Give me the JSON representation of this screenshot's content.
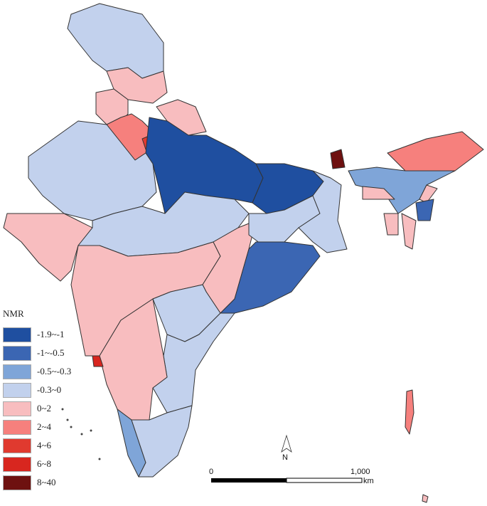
{
  "legend": {
    "title": "NMR",
    "items": [
      {
        "label": "-1.9~-1",
        "color": "#1f4fa0"
      },
      {
        "label": "-1~-0.5",
        "color": "#3b66b3"
      },
      {
        "label": "-0.5~-0.3",
        "color": "#7fa5d8"
      },
      {
        "label": "-0.3~0",
        "color": "#c2d1ed"
      },
      {
        "label": "0~2",
        "color": "#f8bdbf"
      },
      {
        "label": "2~4",
        "color": "#f6807d"
      },
      {
        "label": "4~6",
        "color": "#e03a2f"
      },
      {
        "label": "6~8",
        "color": "#d8261f"
      },
      {
        "label": "8~40",
        "color": "#6e1110"
      }
    ]
  },
  "north_arrow": {
    "label": "N"
  },
  "scale_bar": {
    "start": "0",
    "end": "1,000",
    "unit": "km"
  }
}
